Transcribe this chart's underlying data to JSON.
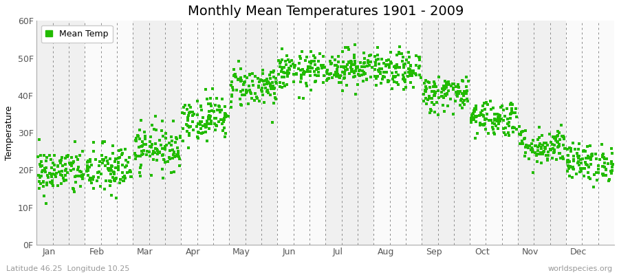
{
  "title": "Monthly Mean Temperatures 1901 - 2009",
  "ylabel": "Temperature",
  "xlabel_bottom_left": "Latitude 46.25  Longitude 10.25",
  "xlabel_bottom_right": "worldspecies.org",
  "marker_color": "#22BB00",
  "background_color": "#FFFFFF",
  "plot_bg_color_light": "#F0F0F0",
  "plot_bg_color_white": "#FAFAFA",
  "ylim": [
    0,
    60
  ],
  "ytick_labels": [
    "0F",
    "10F",
    "20F",
    "30F",
    "40F",
    "50F",
    "60F"
  ],
  "ytick_values": [
    0,
    10,
    20,
    30,
    40,
    50,
    60
  ],
  "months": [
    "Jan",
    "Feb",
    "Mar",
    "Apr",
    "May",
    "Jun",
    "Jul",
    "Aug",
    "Sep",
    "Oct",
    "Nov",
    "Dec"
  ],
  "n_years": 109,
  "mean_temps_F": [
    19.5,
    20.0,
    26.0,
    34.0,
    42.5,
    46.5,
    47.5,
    46.5,
    40.5,
    34.0,
    26.5,
    22.0
  ],
  "std_temps_F": [
    3.2,
    3.5,
    3.0,
    3.0,
    2.8,
    2.5,
    2.5,
    2.5,
    2.5,
    2.5,
    2.5,
    2.5
  ],
  "seed": 42,
  "title_fontsize": 14,
  "axis_fontsize": 9,
  "tick_fontsize": 9,
  "legend_fontsize": 9,
  "marker_size": 6
}
